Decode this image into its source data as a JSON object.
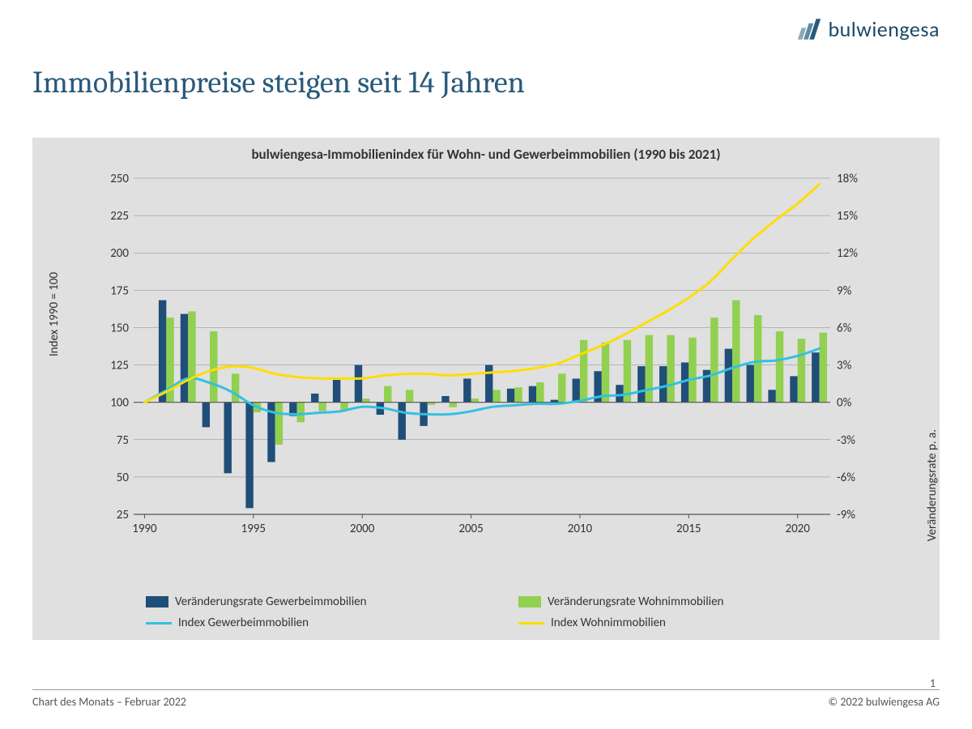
{
  "brand": {
    "name": "bulwiengesa",
    "logo_colors": [
      "#8fa8b8",
      "#5a8aa8",
      "#2a5a7a"
    ]
  },
  "page_title": "Immobilienpreise steigen seit 14 Jahren",
  "footer": {
    "left": "Chart des Monats – Februar 2022",
    "right": "© 2022 bulwiengesa AG",
    "page_number": "1"
  },
  "chart": {
    "title": "bulwiengesa-Immobilienindex für Wohn- und Gewerbeimmobilien (1990 bis 2021)",
    "background_color": "#e0e0e0",
    "grid_color": "#888888",
    "years": [
      1990,
      1991,
      1992,
      1993,
      1994,
      1995,
      1996,
      1997,
      1998,
      1999,
      2000,
      2001,
      2002,
      2003,
      2004,
      2005,
      2006,
      2007,
      2008,
      2009,
      2010,
      2011,
      2012,
      2013,
      2014,
      2015,
      2016,
      2017,
      2018,
      2019,
      2020,
      2021
    ],
    "x_ticks": [
      1990,
      1995,
      2000,
      2005,
      2010,
      2015,
      2020
    ],
    "left_axis": {
      "label": "Index 1990 = 100",
      "min": 25,
      "max": 250,
      "step": 25,
      "ticks": [
        25,
        50,
        75,
        100,
        125,
        150,
        175,
        200,
        225,
        250
      ]
    },
    "right_axis": {
      "label": "Veränderungsrate p. a.",
      "min": -9,
      "max": 18,
      "step": 3,
      "ticks": [
        "-9%",
        "-6%",
        "-3%",
        "0%",
        "3%",
        "6%",
        "9%",
        "12%",
        "15%",
        "18%"
      ],
      "tick_vals": [
        -9,
        -6,
        -3,
        0,
        3,
        6,
        9,
        12,
        15,
        18
      ]
    },
    "series": {
      "bar_gewerbe": {
        "label": "Veränderungsrate Gewerbeimmobilien",
        "color": "#1f4e79",
        "axis": "right",
        "values": [
          null,
          8.2,
          7.1,
          -2.0,
          -5.7,
          -8.5,
          -4.8,
          -1.1,
          0.7,
          1.8,
          3.0,
          -1.0,
          -3.0,
          -1.9,
          0.5,
          1.9,
          3.0,
          1.1,
          1.3,
          0.2,
          1.9,
          2.5,
          1.4,
          2.9,
          2.9,
          3.2,
          2.6,
          4.3,
          3.0,
          1.0,
          2.1,
          4.0
        ]
      },
      "bar_wohn": {
        "label": "Veränderungsrate Wohnimmobilien",
        "color": "#92d050",
        "axis": "right",
        "values": [
          null,
          6.8,
          7.3,
          5.7,
          2.3,
          -0.8,
          -3.4,
          -1.6,
          -0.7,
          -0.6,
          0.3,
          1.3,
          1.0,
          -0.2,
          -0.4,
          0.3,
          1.0,
          1.2,
          1.6,
          2.3,
          5.0,
          4.8,
          5.0,
          5.4,
          5.4,
          5.2,
          6.8,
          8.2,
          7.0,
          5.7,
          5.1,
          5.6
        ]
      },
      "line_gewerbe": {
        "label": "Index Gewerbeimmobilien",
        "color": "#33c1e0",
        "axis": "left",
        "width": 3,
        "values": [
          100,
          108,
          116,
          113,
          107,
          98,
          93,
          92,
          93,
          94,
          97,
          96,
          93,
          92,
          92,
          94,
          97,
          98,
          99,
          99,
          101,
          104,
          105,
          108,
          111,
          115,
          118,
          123,
          127,
          128,
          131,
          136
        ]
      },
      "line_wohn": {
        "label": "Index Wohnimmobilien",
        "color": "#ffdd00",
        "axis": "left",
        "width": 3,
        "values": [
          100,
          107,
          115,
          121,
          124,
          123,
          119,
          117,
          116,
          116,
          116,
          118,
          119,
          119,
          118,
          119,
          120,
          121,
          123,
          126,
          132,
          138,
          145,
          153,
          161,
          170,
          181,
          196,
          210,
          222,
          233,
          246
        ]
      }
    },
    "legend_order": [
      "bar_gewerbe",
      "bar_wohn",
      "line_gewerbe",
      "line_wohn"
    ]
  }
}
